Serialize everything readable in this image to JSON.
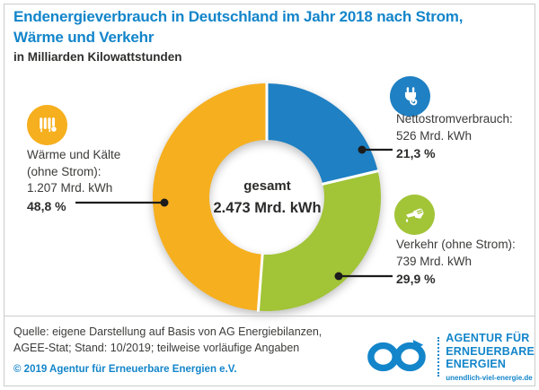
{
  "title": {
    "line1": "Endenergieverbrauch in Deutschland im Jahr 2018 nach Strom,",
    "line2": "Wärme und Verkehr",
    "subtitle": "in Milliarden Kilowattstunden"
  },
  "chart_data": {
    "type": "pie",
    "variant": "donut",
    "title": "Endenergieverbrauch in Deutschland im Jahr 2018 nach Strom, Wärme und Verkehr",
    "unit": "Mrd. kWh",
    "start_angle_deg": 0,
    "direction": "clockwise",
    "segments": [
      {
        "id": "strom",
        "label": "Nettostromverbrauch",
        "value": 526,
        "percent": 21.3,
        "color": "#1f80c3"
      },
      {
        "id": "verkehr",
        "label": "Verkehr (ohne Strom)",
        "value": 739,
        "percent": 29.9,
        "color": "#a2c437"
      },
      {
        "id": "waerme",
        "label": "Wärme und Kälte (ohne Strom)",
        "value": 1207,
        "percent": 48.8,
        "color": "#f6af1e"
      }
    ],
    "total": {
      "label": "gesamt",
      "value": 2473,
      "display": "2.473 Mrd. kWh"
    }
  },
  "center": {
    "label": "gesamt",
    "value": "2.473 Mrd. kWh"
  },
  "callouts": {
    "waerme": {
      "line1": "Wärme und Kälte",
      "line2": "(ohne Strom):",
      "line3": "1.207 Mrd. kWh",
      "percent": "48,8 %"
    },
    "strom": {
      "line1": "Nettostromverbrauch:",
      "line2": "526 Mrd. kWh",
      "percent": "21,3 %"
    },
    "verkehr": {
      "line1": "Verkehr (ohne Strom):",
      "line2": "739 Mrd. kWh",
      "percent": "29,9 %"
    }
  },
  "footer": {
    "source_line1": "Quelle: eigene Darstellung auf Basis von AG Energiebilanzen,",
    "source_line2": "AGEE-Stat; Stand: 10/2019; teilweise vorläufige Angaben",
    "copyright": "© 2019 Agentur für Erneuerbare Energien e.V."
  },
  "logo": {
    "line1": "AGENTUR FÜR",
    "line2": "ERNEUERBARE",
    "line3": "ENERGIEN",
    "url": "unendlich-viel-energie.de"
  },
  "colors": {
    "brand_blue": "#1385ca",
    "segment_blue": "#1f80c3",
    "segment_green": "#a2c437",
    "segment_orange": "#f6af1e",
    "text": "#3b3b3a",
    "border": "#cccbca"
  }
}
